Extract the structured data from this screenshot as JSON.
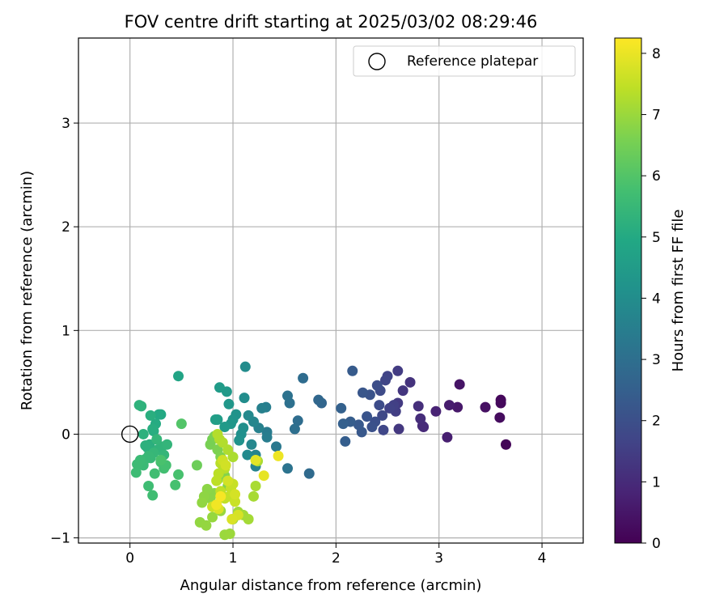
{
  "chart_data": {
    "type": "scatter",
    "title": "FOV centre drift starting at 2025/03/02 08:29:46",
    "xlabel": "Angular distance from reference (arcmin)",
    "ylabel": "Rotation from reference (arcmin)",
    "xlim": [
      -0.5,
      4.4
    ],
    "ylim": [
      -1.05,
      3.82
    ],
    "xticks": [
      0,
      1,
      2,
      3,
      4
    ],
    "xtick_labels": [
      "0",
      "1",
      "2",
      "3",
      "4"
    ],
    "yticks": [
      -1,
      0,
      1,
      2,
      3
    ],
    "ytick_labels": [
      "−1",
      "0",
      "1",
      "2",
      "3"
    ],
    "grid": true,
    "legend": {
      "placement": "top-right",
      "label": "Reference platepar"
    },
    "reference_point": {
      "x": 0,
      "y": 0
    },
    "colorbar": {
      "label": "Hours from first FF file",
      "range": [
        0,
        8.25
      ],
      "ticks": [
        0,
        1,
        2,
        3,
        4,
        5,
        6,
        7,
        8
      ],
      "tick_labels": [
        "0",
        "1",
        "2",
        "3",
        "4",
        "5",
        "6",
        "7",
        "8"
      ],
      "colormap": "viridis"
    },
    "points": [
      [
        3.65,
        -0.1,
        0.1
      ],
      [
        3.6,
        0.33,
        0.15
      ],
      [
        3.6,
        0.3,
        0.2
      ],
      [
        3.59,
        0.16,
        0.25
      ],
      [
        3.45,
        0.26,
        0.35
      ],
      [
        3.2,
        0.48,
        0.45
      ],
      [
        3.18,
        0.26,
        0.55
      ],
      [
        3.1,
        0.28,
        0.65
      ],
      [
        3.08,
        -0.03,
        0.7
      ],
      [
        2.97,
        0.22,
        0.8
      ],
      [
        2.85,
        0.07,
        0.95
      ],
      [
        2.84,
        0.08,
        1.0
      ],
      [
        2.82,
        0.15,
        1.05
      ],
      [
        2.8,
        0.27,
        1.1
      ],
      [
        2.72,
        0.5,
        1.2
      ],
      [
        2.65,
        0.42,
        1.3
      ],
      [
        2.61,
        0.05,
        1.35
      ],
      [
        2.6,
        0.3,
        1.4
      ],
      [
        2.6,
        0.61,
        1.45
      ],
      [
        2.58,
        0.22,
        1.5
      ],
      [
        2.56,
        0.28,
        1.55
      ],
      [
        2.52,
        0.25,
        1.6
      ],
      [
        2.5,
        0.56,
        1.65
      ],
      [
        2.48,
        0.52,
        1.7
      ],
      [
        2.46,
        0.04,
        1.75
      ],
      [
        2.45,
        0.18,
        1.8
      ],
      [
        2.43,
        0.42,
        1.85
      ],
      [
        2.42,
        0.28,
        1.9
      ],
      [
        2.4,
        0.47,
        1.95
      ],
      [
        2.38,
        0.12,
        2.0
      ],
      [
        2.35,
        0.07,
        2.05
      ],
      [
        2.33,
        0.38,
        2.1
      ],
      [
        2.3,
        0.17,
        2.15
      ],
      [
        2.26,
        0.4,
        2.2
      ],
      [
        2.25,
        0.02,
        2.25
      ],
      [
        2.22,
        0.09,
        2.3
      ],
      [
        2.16,
        0.61,
        2.35
      ],
      [
        2.14,
        0.12,
        2.4
      ],
      [
        2.09,
        -0.07,
        2.45
      ],
      [
        2.07,
        0.1,
        2.5
      ],
      [
        2.05,
        0.25,
        2.55
      ],
      [
        1.86,
        0.3,
        2.7
      ],
      [
        1.83,
        0.33,
        2.75
      ],
      [
        1.74,
        -0.38,
        2.85
      ],
      [
        1.68,
        0.54,
        2.9
      ],
      [
        1.63,
        0.13,
        2.95
      ],
      [
        1.6,
        0.05,
        3.0
      ],
      [
        1.55,
        0.3,
        3.05
      ],
      [
        1.53,
        0.37,
        3.1
      ],
      [
        1.53,
        -0.33,
        3.15
      ],
      [
        1.42,
        -0.12,
        3.3
      ],
      [
        1.33,
        0.02,
        3.4
      ],
      [
        1.33,
        -0.03,
        3.45
      ],
      [
        1.32,
        0.26,
        3.5
      ],
      [
        1.28,
        0.25,
        3.55
      ],
      [
        1.25,
        0.06,
        3.6
      ],
      [
        1.22,
        -0.31,
        3.65
      ],
      [
        1.22,
        -0.2,
        3.7
      ],
      [
        1.2,
        0.12,
        3.75
      ],
      [
        1.18,
        -0.1,
        3.8
      ],
      [
        1.15,
        0.18,
        3.85
      ],
      [
        1.14,
        -0.2,
        3.9
      ],
      [
        1.12,
        0.65,
        3.95
      ],
      [
        1.11,
        0.35,
        4.0
      ],
      [
        1.1,
        0.06,
        4.05
      ],
      [
        1.08,
        0.0,
        4.1
      ],
      [
        1.06,
        -0.06,
        4.15
      ],
      [
        1.03,
        0.19,
        4.2
      ],
      [
        1.0,
        0.14,
        4.25
      ],
      [
        0.98,
        0.1,
        4.3
      ],
      [
        0.96,
        0.29,
        4.35
      ],
      [
        0.94,
        0.41,
        4.4
      ],
      [
        0.92,
        0.07,
        4.45
      ],
      [
        0.87,
        0.45,
        4.5
      ],
      [
        0.85,
        0.14,
        4.55
      ],
      [
        0.83,
        0.14,
        4.6
      ],
      [
        0.47,
        0.56,
        4.8
      ],
      [
        0.3,
        0.19,
        4.95
      ],
      [
        0.28,
        0.19,
        5.0
      ],
      [
        0.25,
        0.1,
        5.05
      ],
      [
        0.23,
        0.03,
        5.1
      ],
      [
        0.22,
        0.05,
        5.12
      ],
      [
        0.2,
        0.18,
        5.15
      ],
      [
        0.19,
        -0.1,
        5.18
      ],
      [
        0.17,
        -0.13,
        5.2
      ],
      [
        0.15,
        -0.11,
        5.22
      ],
      [
        0.13,
        0.0,
        5.25
      ],
      [
        0.11,
        0.27,
        5.28
      ],
      [
        0.09,
        0.28,
        5.3
      ],
      [
        0.27,
        -0.15,
        5.32
      ],
      [
        0.31,
        -0.12,
        5.35
      ],
      [
        0.36,
        -0.1,
        5.38
      ],
      [
        0.33,
        -0.2,
        5.4
      ],
      [
        0.26,
        -0.05,
        5.42
      ],
      [
        0.23,
        -0.18,
        5.45
      ],
      [
        0.2,
        -0.23,
        5.48
      ],
      [
        0.18,
        -0.21,
        5.5
      ],
      [
        0.15,
        -0.24,
        5.52
      ],
      [
        0.13,
        -0.3,
        5.55
      ],
      [
        0.1,
        -0.25,
        5.58
      ],
      [
        0.07,
        -0.29,
        5.6
      ],
      [
        0.06,
        -0.37,
        5.62
      ],
      [
        0.18,
        -0.5,
        5.65
      ],
      [
        0.22,
        -0.59,
        5.68
      ],
      [
        0.24,
        -0.38,
        5.7
      ],
      [
        0.3,
        -0.27,
        5.72
      ],
      [
        0.33,
        -0.33,
        5.75
      ],
      [
        0.35,
        -0.3,
        5.78
      ],
      [
        0.44,
        -0.49,
        5.8
      ],
      [
        0.47,
        -0.39,
        5.82
      ],
      [
        0.3,
        -0.25,
        5.85
      ],
      [
        0.5,
        0.1,
        6.0
      ],
      [
        0.65,
        -0.3,
        6.4
      ],
      [
        0.8,
        -0.05,
        6.5
      ],
      [
        0.78,
        -0.1,
        6.55
      ],
      [
        0.82,
        -0.02,
        6.6
      ],
      [
        0.85,
        -0.15,
        6.62
      ],
      [
        0.88,
        -0.22,
        6.65
      ],
      [
        0.9,
        -0.3,
        6.68
      ],
      [
        0.92,
        -0.4,
        6.7
      ],
      [
        0.95,
        -0.5,
        6.72
      ],
      [
        0.85,
        -0.44,
        6.75
      ],
      [
        0.82,
        -0.57,
        6.78
      ],
      [
        0.78,
        -0.62,
        6.8
      ],
      [
        0.75,
        -0.53,
        6.82
      ],
      [
        0.72,
        -0.6,
        6.85
      ],
      [
        0.7,
        -0.66,
        6.88
      ],
      [
        0.68,
        -0.85,
        6.9
      ],
      [
        0.74,
        -0.88,
        6.92
      ],
      [
        0.8,
        -0.8,
        6.95
      ],
      [
        0.88,
        -0.74,
        6.98
      ],
      [
        0.92,
        -0.97,
        7.0
      ],
      [
        0.97,
        -0.96,
        7.02
      ],
      [
        1.0,
        -0.82,
        7.05
      ],
      [
        1.05,
        -0.75,
        7.08
      ],
      [
        1.1,
        -0.78,
        7.1
      ],
      [
        1.15,
        -0.82,
        7.12
      ],
      [
        1.2,
        -0.6,
        7.15
      ],
      [
        1.22,
        -0.5,
        7.18
      ],
      [
        1.24,
        -0.26,
        7.2
      ],
      [
        1.0,
        -0.22,
        7.22
      ],
      [
        0.95,
        -0.15,
        7.25
      ],
      [
        0.9,
        -0.08,
        7.28
      ],
      [
        0.87,
        -0.05,
        7.3
      ],
      [
        0.85,
        0.0,
        7.32
      ],
      [
        0.92,
        -0.33,
        7.35
      ],
      [
        0.88,
        -0.28,
        7.38
      ],
      [
        0.86,
        -0.38,
        7.4
      ],
      [
        0.84,
        -0.45,
        7.42
      ],
      [
        0.88,
        -0.55,
        7.45
      ],
      [
        0.92,
        -0.62,
        7.48
      ],
      [
        0.96,
        -0.6,
        7.5
      ],
      [
        0.98,
        -0.52,
        7.52
      ],
      [
        1.0,
        -0.48,
        7.55
      ],
      [
        1.02,
        -0.65,
        7.58
      ],
      [
        0.8,
        -0.7,
        7.6
      ],
      [
        0.84,
        -0.68,
        7.62
      ],
      [
        0.9,
        -0.25,
        7.65
      ],
      [
        0.93,
        -0.3,
        7.68
      ],
      [
        0.95,
        -0.45,
        7.7
      ],
      [
        1.02,
        -0.58,
        7.72
      ],
      [
        1.05,
        -0.78,
        7.75
      ],
      [
        0.99,
        -0.82,
        7.78
      ],
      [
        0.86,
        -0.72,
        7.8
      ],
      [
        1.22,
        -0.25,
        7.9
      ],
      [
        1.3,
        -0.4,
        7.95
      ],
      [
        1.44,
        -0.21,
        8.05
      ],
      [
        0.84,
        -0.68,
        8.1
      ],
      [
        0.88,
        -0.6,
        8.15
      ]
    ]
  }
}
